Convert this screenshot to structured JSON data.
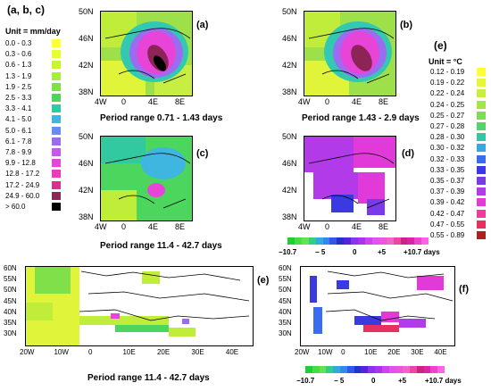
{
  "left_legend": {
    "title": "(a, b, c)",
    "unit": "Unit = mm/day",
    "rows": [
      {
        "label": "0.0  -  0.3",
        "color": "#ffff33"
      },
      {
        "label": "0.3  -  0.6",
        "color": "#e6ff33"
      },
      {
        "label": "0.6  -  1.3",
        "color": "#c8f533"
      },
      {
        "label": "1.3  -  1.9",
        "color": "#a8ec3d"
      },
      {
        "label": "1.9  -  2.5",
        "color": "#7fe04a"
      },
      {
        "label": "2.5  -  3.3",
        "color": "#4dd65e"
      },
      {
        "label": "3.3  -  4.1",
        "color": "#30c9a0"
      },
      {
        "label": "4.1  -  5.0",
        "color": "#3fb6e0"
      },
      {
        "label": "5.0  -  6.1",
        "color": "#6a8bf0"
      },
      {
        "label": "6.1  -  7.8",
        "color": "#9a6cf0"
      },
      {
        "label": "7.8  -  9.9",
        "color": "#c858e8"
      },
      {
        "label": "9.9  - 12.8",
        "color": "#e844d8"
      },
      {
        "label": "12.8 - 17.2",
        "color": "#f039b8"
      },
      {
        "label": "17.2 - 24.9",
        "color": "#e02c8c"
      },
      {
        "label": "24.9 - 60.0",
        "color": "#8c2458"
      },
      {
        "label": "> 60.0",
        "color": "#000000"
      }
    ]
  },
  "right_legend": {
    "title": "(e)",
    "unit": "Unit = °C",
    "rows": [
      {
        "label": "0.12  -  0.19",
        "color": "#ffff33"
      },
      {
        "label": "0.19  -  0.22",
        "color": "#e8f63a"
      },
      {
        "label": "0.22  -  0.24",
        "color": "#c9ee40"
      },
      {
        "label": "0.24  -  0.25",
        "color": "#a4e64a"
      },
      {
        "label": "0.25  -  0.27",
        "color": "#7edc55"
      },
      {
        "label": "0.27  -  0.28",
        "color": "#55d36a"
      },
      {
        "label": "0.28  -  0.30",
        "color": "#33c7a8"
      },
      {
        "label": "0.30  -  0.32",
        "color": "#3aa6e6"
      },
      {
        "label": "0.32  -  0.33",
        "color": "#3b6cf0"
      },
      {
        "label": "0.33  -  0.35",
        "color": "#3a3ae0"
      },
      {
        "label": "0.35  -  0.37",
        "color": "#7a3ae8"
      },
      {
        "label": "0.37  -  0.39",
        "color": "#b23ae8"
      },
      {
        "label": "0.39  -  0.42",
        "color": "#e23ad8"
      },
      {
        "label": "0.42  -  0.47",
        "color": "#f03aa0"
      },
      {
        "label": "0.47  -  0.55",
        "color": "#e83060"
      },
      {
        "label": "0.55  -  0.89",
        "color": "#b02020"
      }
    ]
  },
  "panels": {
    "a": {
      "label": "(a)",
      "caption": "Period range 0.71 - 1.43  days"
    },
    "b": {
      "label": "(b)",
      "caption": "Period range 1.43 - 2.9  days"
    },
    "c": {
      "label": "(c)",
      "caption": "Period range 11.4 - 42.7  days"
    },
    "d": {
      "label": "(d)"
    },
    "e": {
      "label": "(e)",
      "caption": "Period range 11.4 - 42.7  days"
    },
    "f": {
      "label": "(f)"
    }
  },
  "small_map_axes": {
    "lat_ticks": [
      "50N",
      "46N",
      "42N",
      "38N"
    ],
    "lon_ticks": [
      "4W",
      "0",
      "4E",
      "8E"
    ]
  },
  "large_map_axes": {
    "lat_ticks": [
      "60N",
      "55N",
      "50N",
      "45N",
      "40N",
      "35N",
      "30N"
    ],
    "lon_ticks": [
      "20W",
      "10W",
      "0",
      "10E",
      "20E",
      "30E",
      "40E"
    ]
  },
  "colorbar": {
    "ticks": [
      "−10.7",
      "− 5",
      "0",
      "+5",
      "+10.7 days"
    ],
    "colors": [
      "#22cc33",
      "#44dd44",
      "#66e055",
      "#33cc88",
      "#33aadd",
      "#3388ee",
      "#3355ee",
      "#2233cc",
      "#5522dd",
      "#8833ee",
      "#aa33ee",
      "#cc44ee",
      "#dd55ee",
      "#ee55dd",
      "#ee66cc",
      "#ee44aa",
      "#cc2288",
      "#dd22aa",
      "#ee44cc",
      "#ff66dd"
    ]
  }
}
